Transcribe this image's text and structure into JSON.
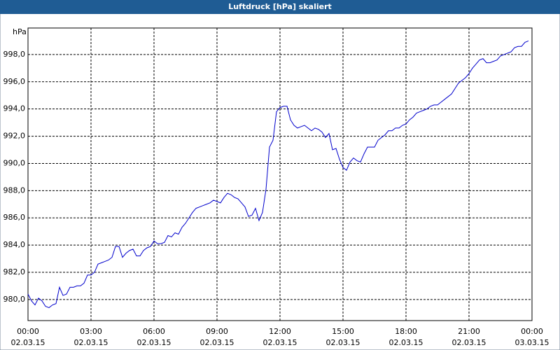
{
  "chart_data": {
    "type": "line",
    "title": "Luftdruck [hPa] skaliert",
    "y_unit": "hPa",
    "x": [
      0,
      10,
      20,
      30,
      40,
      50,
      60,
      70,
      80,
      90,
      100,
      110,
      120,
      130,
      140,
      150,
      160,
      170,
      180,
      190,
      200,
      210,
      220,
      230,
      240,
      250,
      260,
      270,
      280,
      290,
      300,
      310,
      320,
      330,
      340,
      350,
      360,
      370,
      380,
      390,
      400,
      410,
      420,
      430,
      440,
      450,
      460,
      470,
      480,
      490,
      500,
      510,
      520,
      530,
      540,
      550,
      560,
      570,
      580,
      590,
      600,
      610,
      620,
      630,
      640,
      650,
      660,
      670,
      680,
      690,
      700,
      710,
      720,
      730,
      740,
      750,
      760,
      770,
      780,
      790,
      800,
      810,
      820,
      830,
      840,
      850,
      860,
      870,
      880,
      890,
      900,
      910,
      920,
      930,
      940,
      950,
      960,
      970,
      980,
      990,
      1000,
      1010,
      1020,
      1030,
      1040,
      1050,
      1060,
      1070,
      1080,
      1090,
      1100,
      1110,
      1120,
      1130,
      1140,
      1150,
      1160,
      1170,
      1180,
      1190,
      1200,
      1210,
      1220,
      1230,
      1240,
      1250,
      1260,
      1270,
      1280,
      1290,
      1300,
      1310,
      1320,
      1330,
      1340,
      1350,
      1360,
      1370,
      1380,
      1390,
      1400,
      1410,
      1420,
      1430
    ],
    "series": [
      {
        "color": "#0000cc",
        "values": [
          980.4,
          979.9,
          979.6,
          980.1,
          979.9,
          979.5,
          979.4,
          979.6,
          979.7,
          980.9,
          980.3,
          980.4,
          980.9,
          980.9,
          981.0,
          981.0,
          981.2,
          981.8,
          981.8,
          982.0,
          982.6,
          982.7,
          982.8,
          982.9,
          983.1,
          983.9,
          983.9,
          983.1,
          983.4,
          983.6,
          983.7,
          983.2,
          983.2,
          983.6,
          983.8,
          983.9,
          984.3,
          984.1,
          984.1,
          984.2,
          984.7,
          984.6,
          984.9,
          984.8,
          985.3,
          985.6,
          986.0,
          986.4,
          986.7,
          986.8,
          986.9,
          987.0,
          987.1,
          987.3,
          987.2,
          987.1,
          987.5,
          987.8,
          987.7,
          987.5,
          987.4,
          987.1,
          986.8,
          986.1,
          986.2,
          986.7,
          985.8,
          986.4,
          988.1,
          991.2,
          991.7,
          993.8,
          994.1,
          994.2,
          994.2,
          993.2,
          992.8,
          992.6,
          992.7,
          992.8,
          992.6,
          992.4,
          992.6,
          992.5,
          992.3,
          991.9,
          992.2,
          991.0,
          991.1,
          990.3,
          989.7,
          989.5,
          990.1,
          990.4,
          990.2,
          990.1,
          990.7,
          991.2,
          991.2,
          991.2,
          991.7,
          991.9,
          992.1,
          992.4,
          992.4,
          992.6,
          992.6,
          992.8,
          992.9,
          993.2,
          993.4,
          993.7,
          993.8,
          993.9,
          994.0,
          994.2,
          994.3,
          994.3,
          994.5,
          994.7,
          994.9,
          995.1,
          995.5,
          995.9,
          996.1,
          996.3,
          996.6,
          997.0,
          997.3,
          997.6,
          997.7,
          997.4,
          997.4,
          997.5,
          997.6,
          997.9,
          998.0,
          998.1,
          998.2,
          998.5,
          998.6,
          998.6,
          998.9,
          999.0
        ]
      }
    ],
    "xlim": [
      0,
      1440
    ],
    "xticks": [
      {
        "value": 0,
        "label": "00:00"
      },
      {
        "value": 180,
        "label": "03:00"
      },
      {
        "value": 360,
        "label": "06:00"
      },
      {
        "value": 540,
        "label": "09:00"
      },
      {
        "value": 720,
        "label": "12:00"
      },
      {
        "value": 900,
        "label": "15:00"
      },
      {
        "value": 1080,
        "label": "18:00"
      },
      {
        "value": 1260,
        "label": "21:00"
      },
      {
        "value": 1440,
        "label": "00:00"
      }
    ],
    "xtick_dates": [
      "02.03.15",
      "02.03.15",
      "02.03.15",
      "02.03.15",
      "02.03.15",
      "02.03.15",
      "02.03.15",
      "02.03.15",
      "03.03.15"
    ],
    "ylim": [
      978.45,
      999.95
    ],
    "yticks": [
      {
        "value": 980,
        "label": "980,0"
      },
      {
        "value": 982,
        "label": "982,0"
      },
      {
        "value": 984,
        "label": "984,0"
      },
      {
        "value": 986,
        "label": "986,0"
      },
      {
        "value": 988,
        "label": "988,0"
      },
      {
        "value": 990,
        "label": "990,0"
      },
      {
        "value": 992,
        "label": "992,0"
      },
      {
        "value": 994,
        "label": "994,0"
      },
      {
        "value": 996,
        "label": "996,0"
      },
      {
        "value": 998,
        "label": "998,0"
      }
    ],
    "grid": true
  }
}
